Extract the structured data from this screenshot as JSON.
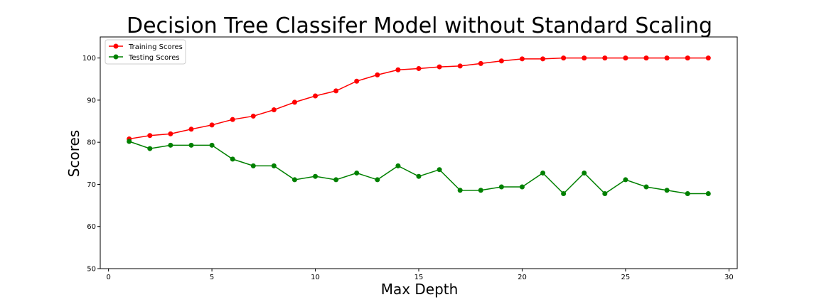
{
  "chart_data": {
    "type": "line",
    "title": "Decision Tree Classifer Model without Standard Scaling",
    "xlabel": "Max Depth",
    "ylabel": "Scores",
    "xlim": [
      -0.4,
      30.4
    ],
    "ylim": [
      50,
      105
    ],
    "xticks": [
      0,
      5,
      10,
      15,
      20,
      25,
      30
    ],
    "yticks": [
      50,
      60,
      70,
      80,
      90,
      100
    ],
    "grid": false,
    "legend_position": "top-left",
    "x": [
      1,
      2,
      3,
      4,
      5,
      6,
      7,
      8,
      9,
      10,
      11,
      12,
      13,
      14,
      15,
      16,
      17,
      18,
      19,
      20,
      21,
      22,
      23,
      24,
      25,
      26,
      27,
      28,
      29
    ],
    "series": [
      {
        "name": "Training Scores",
        "color": "#ff0000",
        "values": [
          80.8,
          81.6,
          82.0,
          83.1,
          84.1,
          85.4,
          86.2,
          87.7,
          89.5,
          91.0,
          92.2,
          94.5,
          96.0,
          97.2,
          97.5,
          97.9,
          98.1,
          98.7,
          99.3,
          99.8,
          99.8,
          100,
          100,
          100,
          100,
          100,
          100,
          100,
          100
        ]
      },
      {
        "name": "Testing Scores",
        "color": "#008000",
        "values": [
          80.2,
          78.5,
          79.3,
          79.3,
          79.3,
          76.0,
          74.4,
          74.4,
          71.1,
          71.9,
          71.1,
          72.7,
          71.1,
          74.4,
          71.9,
          73.5,
          68.6,
          68.6,
          69.4,
          69.4,
          72.7,
          67.8,
          72.7,
          67.8,
          71.1,
          69.4,
          68.6,
          67.8,
          67.8
        ]
      }
    ]
  }
}
